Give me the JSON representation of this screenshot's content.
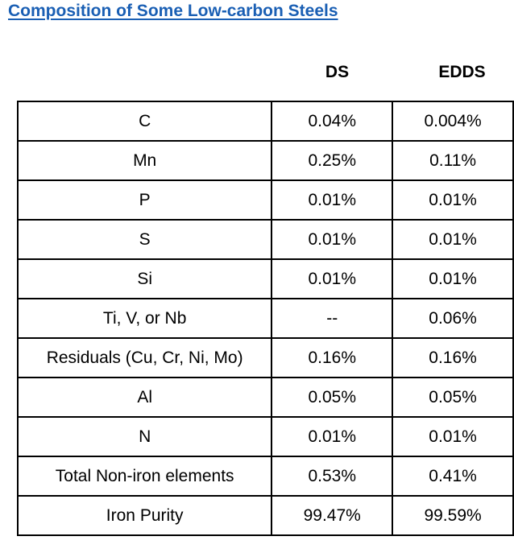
{
  "title": "Composition of Some Low-carbon Steels",
  "columns": {
    "ds": "DS",
    "edds": "EDDS"
  },
  "rows": [
    {
      "element": "C",
      "ds": "0.04%",
      "edds": "0.004%"
    },
    {
      "element": "Mn",
      "ds": "0.25%",
      "edds": "0.11%"
    },
    {
      "element": "P",
      "ds": "0.01%",
      "edds": "0.01%"
    },
    {
      "element": "S",
      "ds": "0.01%",
      "edds": "0.01%"
    },
    {
      "element": "Si",
      "ds": "0.01%",
      "edds": "0.01%"
    },
    {
      "element": "Ti, V, or Nb",
      "ds": "--",
      "edds": "0.06%"
    },
    {
      "element": "Residuals (Cu, Cr, Ni, Mo)",
      "ds": "0.16%",
      "edds": "0.16%"
    },
    {
      "element": "Al",
      "ds": "0.05%",
      "edds": "0.05%"
    },
    {
      "element": "N",
      "ds": "0.01%",
      "edds": "0.01%"
    },
    {
      "element": "Total Non-iron elements",
      "ds": "0.53%",
      "edds": "0.41%"
    },
    {
      "element": "Iron Purity",
      "ds": "99.47%",
      "edds": "99.59%"
    }
  ],
  "colors": {
    "title": "#1a5fb4",
    "border": "#000000"
  }
}
